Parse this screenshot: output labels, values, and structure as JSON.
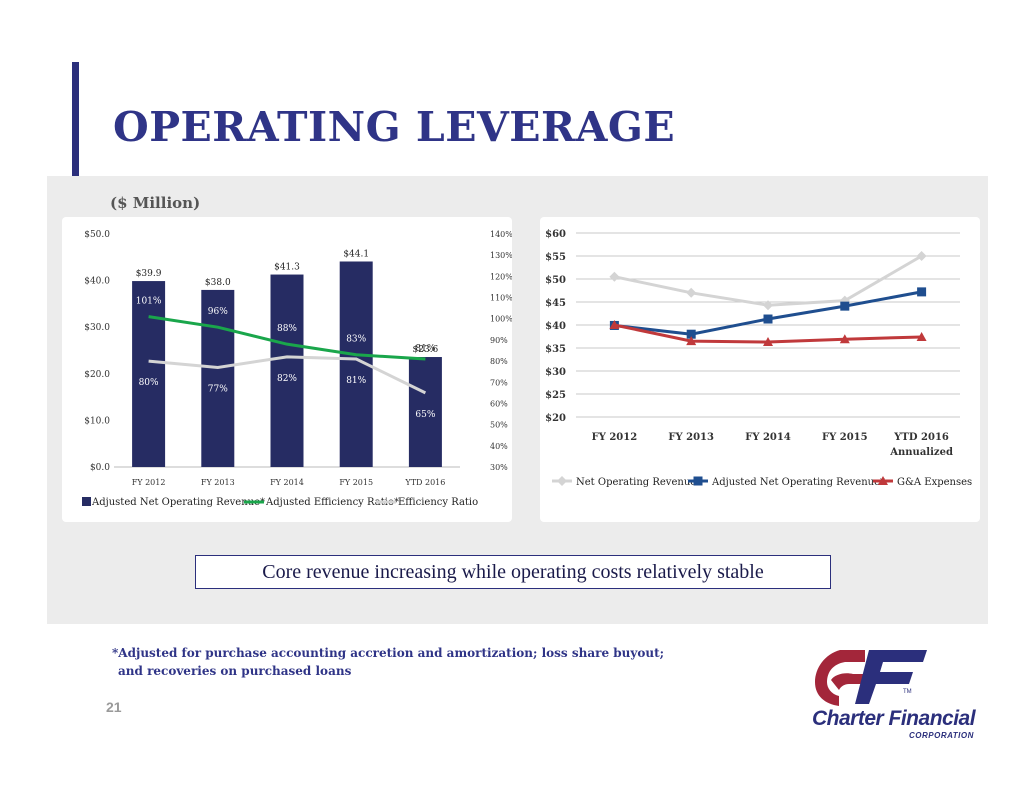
{
  "slide": {
    "title": "OPERATING LEVERAGE",
    "subtitle": "($ Million)",
    "callout": "Core revenue increasing while operating costs relatively stable",
    "footnote_line1": "*Adjusted for purchase accounting accretion and amortization; loss share buyout;",
    "footnote_line2": "and recoveries on purchased loans",
    "page_number": "21",
    "logo_name": "Charter Financial",
    "logo_sub": "CORPORATION",
    "logo_tm": "TM"
  },
  "colors": {
    "title": "#2f3487",
    "bar": "#262c63",
    "green": "#1aa64b",
    "light": "#d4d4d4",
    "blue": "#1f4e8f",
    "red": "#c0393b",
    "logo_red": "#a3263a",
    "logo_blue": "#2b2f7c"
  },
  "chart_data": [
    {
      "type": "bar",
      "categories": [
        "FY 2012",
        "FY 2013",
        "FY 2014",
        "FY 2015",
        "YTD 2016"
      ],
      "series": [
        {
          "name": "Adjusted Net Operating Revenue*",
          "values": [
            39.9,
            38.0,
            41.3,
            44.1,
            23.6
          ],
          "labels": [
            "$39.9",
            "$38.0",
            "$41.3",
            "$44.1",
            "$23.6"
          ],
          "axis": "left"
        },
        {
          "name": "Adjusted Efficiency Ratio*",
          "type": "line",
          "values": [
            101,
            96,
            88,
            83,
            81
          ],
          "labels": [
            "101%",
            "96%",
            "88%",
            "83%",
            "81%"
          ],
          "axis": "right"
        },
        {
          "name": "Efficiency Ratio",
          "type": "line",
          "values": [
            80,
            77,
            82,
            81,
            65
          ],
          "labels": [
            "80%",
            "77%",
            "82%",
            "81%",
            "65%"
          ],
          "axis": "right"
        }
      ],
      "ylim": [
        0,
        50
      ],
      "y_ticks": [
        "$0.0",
        "$10.0",
        "$20.0",
        "$30.0",
        "$40.0",
        "$50.0"
      ],
      "y2lim": [
        30,
        140
      ],
      "y2_ticks": [
        "30%",
        "40%",
        "50%",
        "60%",
        "70%",
        "80%",
        "90%",
        "100%",
        "110%",
        "120%",
        "130%",
        "140%"
      ],
      "legend": "bottom",
      "grid": false
    },
    {
      "type": "line",
      "categories": [
        "FY 2012",
        "FY 2013",
        "FY 2014",
        "FY 2015",
        "YTD 2016"
      ],
      "category_sub": [
        "",
        "",
        "",
        "",
        "Annualized"
      ],
      "series": [
        {
          "name": "Net Operating Revenue",
          "values": [
            50.5,
            47.0,
            44.3,
            45.3,
            55.0
          ],
          "marker": "diamond"
        },
        {
          "name": "Adjusted Net Operating Revenue*",
          "values": [
            39.9,
            38.0,
            41.3,
            44.1,
            47.2
          ],
          "marker": "square"
        },
        {
          "name": "G&A Expenses",
          "values": [
            40.0,
            36.5,
            36.3,
            36.9,
            37.4
          ],
          "marker": "triangle"
        }
      ],
      "ylim": [
        20,
        60
      ],
      "y_ticks": [
        "$20",
        "$25",
        "$30",
        "$35",
        "$40",
        "$45",
        "$50",
        "$55",
        "$60"
      ],
      "legend": "bottom",
      "grid": true
    }
  ]
}
